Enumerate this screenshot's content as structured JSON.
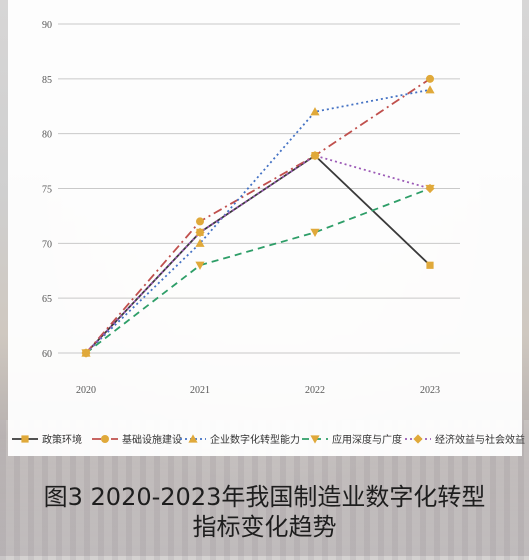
{
  "caption": {
    "line1": "图3 2020-2023年我国制造业数字化转型",
    "line2": "指标变化趋势"
  },
  "chart_data": {
    "type": "line",
    "title": "",
    "xlabel": "",
    "ylabel": "",
    "x": [
      "2020",
      "2021",
      "2022",
      "2023"
    ],
    "ylim": [
      60,
      90
    ],
    "yticks": [
      60,
      65,
      70,
      75,
      80,
      85,
      90
    ],
    "grid": true,
    "legend_position": "bottom",
    "series": [
      {
        "name": "政策环境",
        "values": [
          60,
          71,
          78,
          68
        ],
        "color": "#3a3a3a",
        "dash": "solid",
        "marker": "square"
      },
      {
        "name": "基础设施建设",
        "values": [
          60,
          72,
          78,
          85
        ],
        "color": "#c0504d",
        "dash": "dashdot",
        "marker": "circle"
      },
      {
        "name": "企业数字化转型能力",
        "values": [
          60,
          70,
          82,
          84
        ],
        "color": "#4472c4",
        "dash": "dot",
        "marker": "triangle-up"
      },
      {
        "name": "应用深度与广度",
        "values": [
          60,
          68,
          71,
          75
        ],
        "color": "#2e9e68",
        "dash": "dash",
        "marker": "triangle-down"
      },
      {
        "name": "经济效益与社会效益",
        "values": [
          60,
          71,
          78,
          75
        ],
        "color": "#9b59b6",
        "dash": "dot",
        "marker": "diamond"
      }
    ],
    "marker_color": "#e0a93a"
  }
}
